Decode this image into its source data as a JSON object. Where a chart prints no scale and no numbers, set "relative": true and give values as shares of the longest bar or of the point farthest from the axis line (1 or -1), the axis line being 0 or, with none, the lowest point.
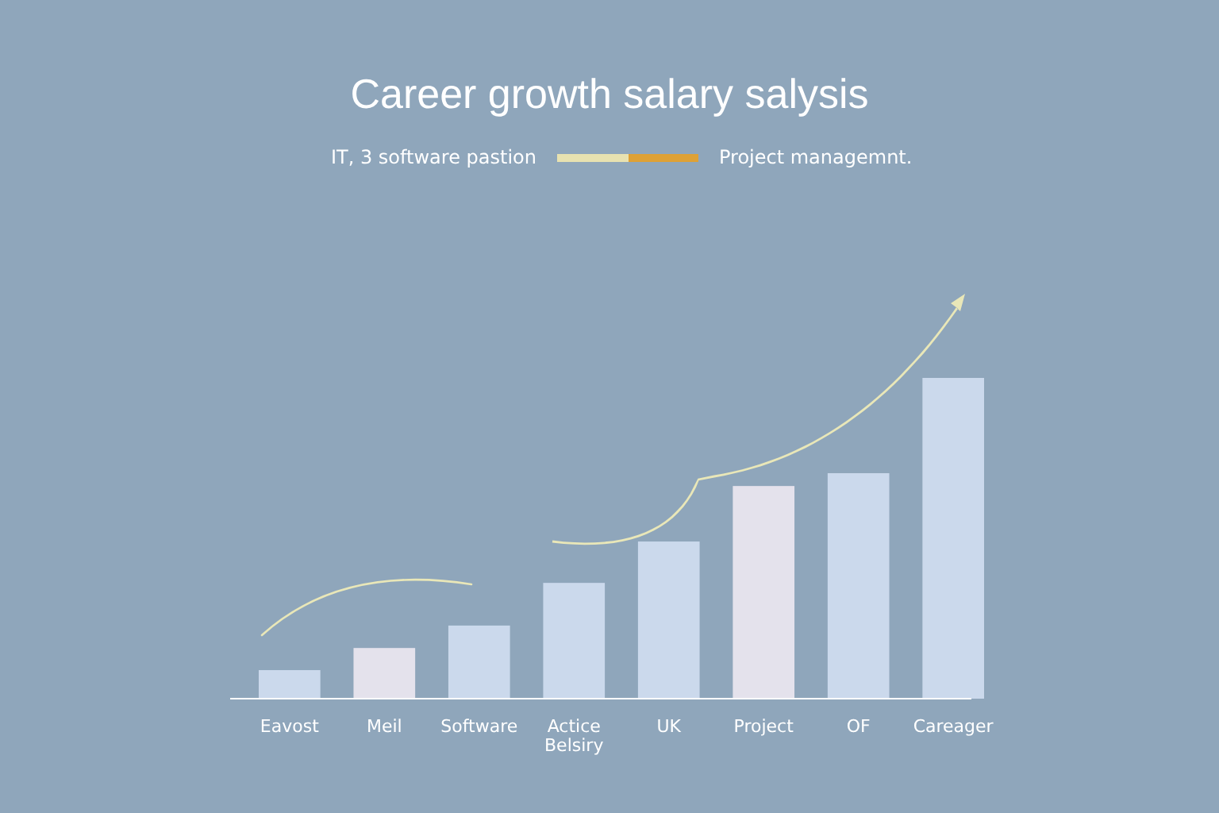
{
  "chart_data": {
    "type": "bar",
    "title": "Career growth salary salysis",
    "relative": true,
    "categories": [
      "Eavost",
      "Meil",
      "Software",
      "Actice\nBelsiry",
      "UK",
      "Project",
      "OF",
      "Careager"
    ],
    "values": [
      0.089,
      0.158,
      0.228,
      0.361,
      0.49,
      0.663,
      0.703,
      1
    ],
    "colors": [
      "#cbd9ec",
      "#e4e2ec",
      "#cbd9ec",
      "#cbd9ec",
      "#cbd9ec",
      "#e4e2ec",
      "#cbd9ec",
      "#cbd9ec"
    ],
    "annotations": [
      "IT, 3 software pastion",
      "Project managemnt."
    ]
  }
}
